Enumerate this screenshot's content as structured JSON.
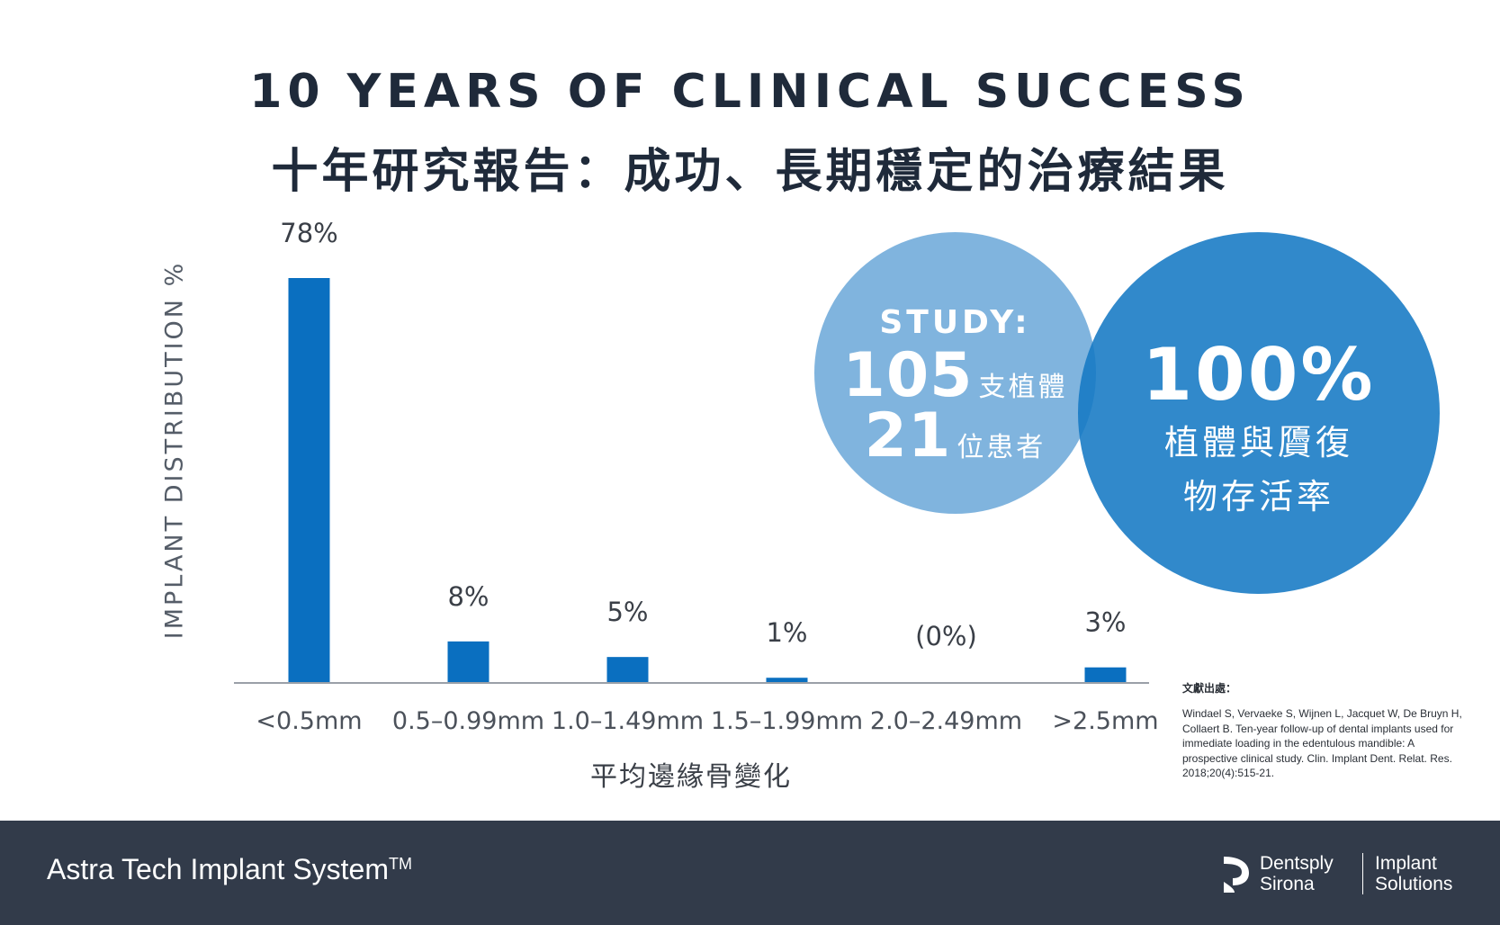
{
  "header": {
    "title_en": "10 YEARS OF CLINICAL SUCCESS",
    "title_zh": "十年研究報告：成功、長期穩定的治療結果"
  },
  "chart_data": {
    "type": "bar",
    "categories": [
      "<0.5mm",
      "0.5–0.99mm",
      "1.0–1.49mm",
      "1.5–1.99mm",
      "2.0–2.49mm",
      ">2.5mm"
    ],
    "values": [
      78,
      8,
      5,
      1,
      0,
      3
    ],
    "value_labels": [
      "78%",
      "8%",
      "5%",
      "1%",
      "(0%)",
      "3%"
    ],
    "xlabel": "平均邊緣骨變化",
    "ylabel": "IMPLANT DISTRIBUTION %",
    "ylim": [
      0,
      78
    ],
    "grid": false,
    "bar_color": "#0a6fc0"
  },
  "study": {
    "label": "STUDY:",
    "implants_count": "105",
    "implants_unit": "支植體",
    "patients_count": "21",
    "patients_unit": "位患者"
  },
  "survival": {
    "value": "100%",
    "caption_line1": "植體與贗復",
    "caption_line2": "物存活率"
  },
  "references": {
    "title": "文獻出處：",
    "text": "Windael S, Vervaeke S, Wijnen L, Jacquet W, De Bruyn H, Collaert B. Ten-year follow-up of dental implants used for immediate loading in the edentulous mandible: A prospective clinical study. Clin. Implant Dent. Relat. Res. 2018;20(4):515-21."
  },
  "footer": {
    "brand": "Astra Tech Implant System",
    "brand_tm": "TM",
    "logo_line1": "Dentsply",
    "logo_line2": "Sirona",
    "logo_line3": "Implant",
    "logo_line4": "Solutions"
  },
  "colors": {
    "navy": "#1f2a3a",
    "bar_blue": "#0a6fc0",
    "circle_light": "#6eaada",
    "circle_dark": "#1579c4",
    "footer_bg": "#323b4a"
  }
}
